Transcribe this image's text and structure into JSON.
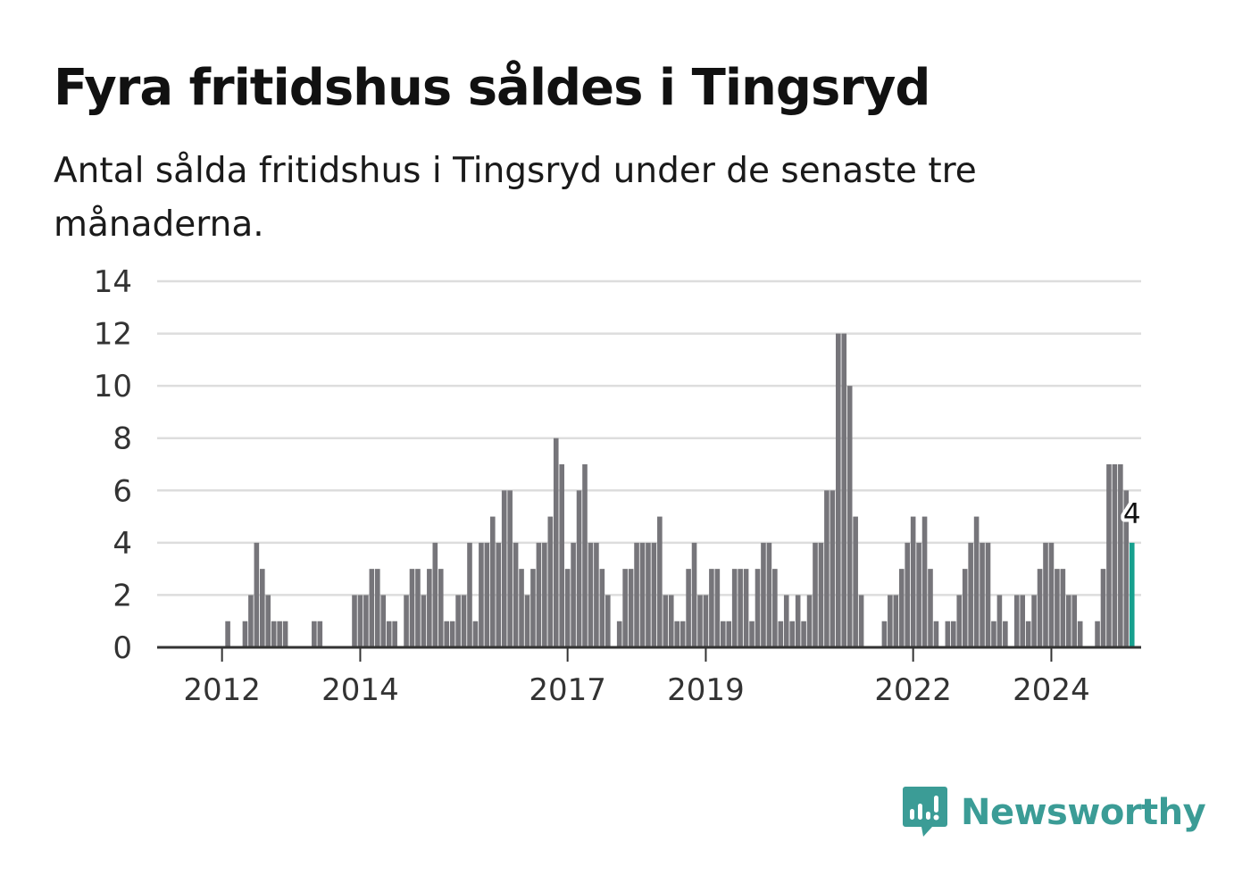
{
  "title": "Fyra fritidshus såldes i Tingsryd",
  "subtitle": "Antal sålda fritidshus i Tingsryd under de senaste tre månaderna.",
  "brand": {
    "name": "Newsworthy",
    "color": "#3b9c96"
  },
  "colors": {
    "bars": "#76757a",
    "highlight": "#16a08e",
    "grid": "#dddddd",
    "axis": "#333333"
  },
  "chart_data": {
    "type": "bar",
    "x_start": "2011-10",
    "x_interval": "month",
    "ylim": [
      0,
      14
    ],
    "yticks": [
      0,
      2,
      4,
      6,
      8,
      10,
      12,
      14
    ],
    "xticks": [
      {
        "label": "2012",
        "date": "2012-01"
      },
      {
        "label": "2014",
        "date": "2014-01"
      },
      {
        "label": "2017",
        "date": "2017-01"
      },
      {
        "label": "2019",
        "date": "2019-01"
      },
      {
        "label": "2022",
        "date": "2022-01"
      },
      {
        "label": "2024",
        "date": "2024-01"
      }
    ],
    "grid": true,
    "values": [
      0,
      0,
      0,
      0,
      1,
      0,
      0,
      1,
      2,
      4,
      3,
      2,
      1,
      1,
      1,
      0,
      0,
      0,
      0,
      1,
      1,
      0,
      0,
      0,
      0,
      0,
      2,
      2,
      2,
      3,
      3,
      2,
      1,
      1,
      0,
      2,
      3,
      3,
      2,
      3,
      4,
      3,
      1,
      1,
      2,
      2,
      4,
      1,
      4,
      4,
      5,
      4,
      6,
      6,
      4,
      3,
      2,
      3,
      4,
      4,
      5,
      8,
      7,
      3,
      4,
      6,
      7,
      4,
      4,
      3,
      2,
      0,
      1,
      3,
      3,
      4,
      4,
      4,
      4,
      5,
      2,
      2,
      1,
      1,
      3,
      4,
      2,
      2,
      3,
      3,
      1,
      1,
      3,
      3,
      3,
      1,
      3,
      4,
      4,
      3,
      1,
      2,
      1,
      2,
      1,
      2,
      4,
      4,
      6,
      6,
      12,
      12,
      10,
      5,
      2,
      0,
      0,
      0,
      1,
      2,
      2,
      3,
      4,
      5,
      4,
      5,
      3,
      1,
      0,
      1,
      1,
      2,
      3,
      4,
      5,
      4,
      4,
      1,
      2,
      1,
      0,
      2,
      2,
      1,
      2,
      3,
      4,
      4,
      3,
      3,
      2,
      2,
      1,
      0,
      0,
      1,
      3,
      7,
      7,
      7,
      6,
      4
    ],
    "highlight_last": true,
    "annotation": "4"
  }
}
